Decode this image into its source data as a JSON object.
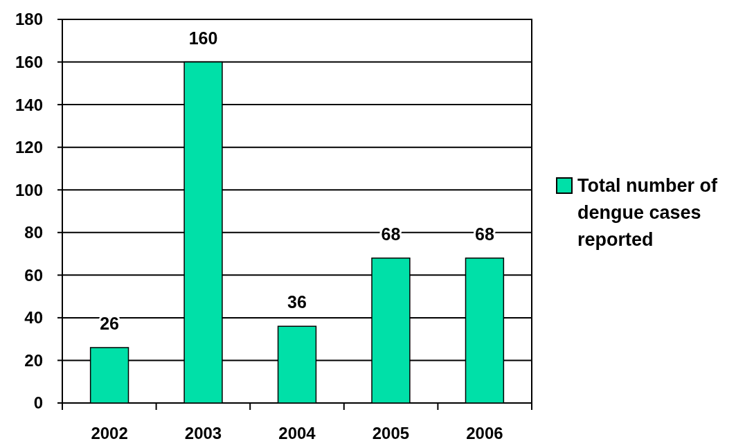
{
  "chart_data": {
    "type": "bar",
    "categories": [
      "2002",
      "2003",
      "2004",
      "2005",
      "2006"
    ],
    "series": [
      {
        "name": "Total number of dengue cases reported",
        "color": "#00e0a8",
        "values": [
          26,
          160,
          36,
          68,
          68
        ]
      }
    ],
    "ylim": [
      0,
      180
    ],
    "yticks": [
      0,
      20,
      40,
      60,
      80,
      100,
      120,
      140,
      160,
      180
    ],
    "grid": "y",
    "legend": "right",
    "data_labels": true
  }
}
